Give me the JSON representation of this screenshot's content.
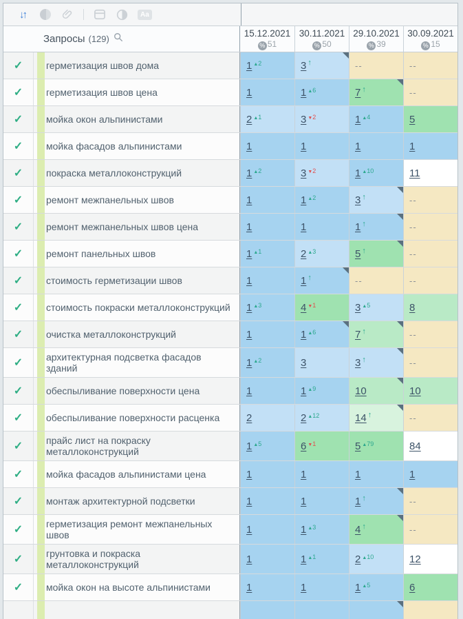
{
  "toolbar": {
    "sort_glyph": "↓↑",
    "aa_label": "Aa",
    "icons": [
      "sort-icon",
      "circle-half-icon",
      "link-icon",
      "card-icon",
      "contrast-icon",
      "font-case-icon"
    ]
  },
  "header": {
    "title": "Запросы",
    "count": "(129)"
  },
  "columns": [
    {
      "date": "15.12.2021",
      "percent": "51"
    },
    {
      "date": "30.11.2021",
      "percent": "50"
    },
    {
      "date": "29.10.2021",
      "percent": "39"
    },
    {
      "date": "30.09.2021",
      "percent": "15"
    }
  ],
  "glyphs": {
    "check": "✓",
    "up_triangle": "▲",
    "down_triangle": "▼",
    "up_arrow": "↑",
    "percent": "%",
    "none_value": "--"
  },
  "colors": {
    "b1": "#a6d3f0",
    "b2": "#c2e0f6",
    "g1": "#9fe2b0",
    "g2": "#b9eac6",
    "g3": "#d8f3de",
    "w": "#ffffff",
    "t": "#f5e8c2",
    "accent_blue": "#3b7ed7",
    "check_green": "#2fae84",
    "delta_up_teal": "#2ca88e",
    "delta_down_red": "#e04f4f",
    "group_stripe": "#dcedb0"
  },
  "rows": [
    {
      "keyword": "герметизация швов дома",
      "cells": [
        {
          "v": "1",
          "d": "2",
          "dir": "up",
          "c": "b1"
        },
        {
          "v": "3",
          "dir": "arrow",
          "c": "b2",
          "corner": true
        },
        {
          "v": "--",
          "c": "t"
        },
        {
          "v": "--",
          "c": "t"
        }
      ]
    },
    {
      "keyword": "герметизация швов цена",
      "cells": [
        {
          "v": "1",
          "c": "b1"
        },
        {
          "v": "1",
          "d": "6",
          "dir": "up",
          "c": "b1"
        },
        {
          "v": "7",
          "dir": "arrow",
          "c": "g1",
          "corner": true
        },
        {
          "v": "--",
          "c": "t"
        }
      ]
    },
    {
      "keyword": "мойка окон альпинистами",
      "cells": [
        {
          "v": "2",
          "d": "1",
          "dir": "up",
          "c": "b2"
        },
        {
          "v": "3",
          "d": "2",
          "dir": "down",
          "c": "b2"
        },
        {
          "v": "1",
          "d": "4",
          "dir": "up",
          "c": "b1"
        },
        {
          "v": "5",
          "c": "g1"
        }
      ]
    },
    {
      "keyword": "мойка фасадов альпинистами",
      "cells": [
        {
          "v": "1",
          "c": "b1"
        },
        {
          "v": "1",
          "c": "b1"
        },
        {
          "v": "1",
          "c": "b1"
        },
        {
          "v": "1",
          "c": "b1"
        }
      ]
    },
    {
      "keyword": "покраска металлоконструкций",
      "cells": [
        {
          "v": "1",
          "d": "2",
          "dir": "up",
          "c": "b1"
        },
        {
          "v": "3",
          "d": "2",
          "dir": "down",
          "c": "b2"
        },
        {
          "v": "1",
          "d": "10",
          "dir": "up",
          "c": "b1"
        },
        {
          "v": "11",
          "c": "w"
        }
      ]
    },
    {
      "keyword": "ремонт межпанельных швов",
      "cells": [
        {
          "v": "1",
          "c": "b1"
        },
        {
          "v": "1",
          "d": "2",
          "dir": "up",
          "c": "b1"
        },
        {
          "v": "3",
          "dir": "arrow",
          "c": "b2",
          "corner": true
        },
        {
          "v": "--",
          "c": "t"
        }
      ]
    },
    {
      "keyword": "ремонт межпанельных швов цена",
      "cells": [
        {
          "v": "1",
          "c": "b1"
        },
        {
          "v": "1",
          "c": "b1"
        },
        {
          "v": "1",
          "dir": "arrow",
          "c": "b1",
          "corner": true
        },
        {
          "v": "--",
          "c": "t"
        }
      ]
    },
    {
      "keyword": "ремонт панельных швов",
      "cells": [
        {
          "v": "1",
          "d": "1",
          "dir": "up",
          "c": "b1"
        },
        {
          "v": "2",
          "d": "3",
          "dir": "up",
          "c": "b2"
        },
        {
          "v": "5",
          "dir": "arrow",
          "c": "g1",
          "corner": true
        },
        {
          "v": "--",
          "c": "t"
        }
      ]
    },
    {
      "keyword": "стоимость герметизации швов",
      "cells": [
        {
          "v": "1",
          "c": "b1"
        },
        {
          "v": "1",
          "dir": "arrow",
          "c": "b1",
          "corner": true
        },
        {
          "v": "--",
          "c": "t"
        },
        {
          "v": "--",
          "c": "t"
        }
      ]
    },
    {
      "keyword": "стоимость покраски металлоконструкций",
      "cells": [
        {
          "v": "1",
          "d": "3",
          "dir": "up",
          "c": "b1"
        },
        {
          "v": "4",
          "d": "1",
          "dir": "down",
          "c": "g1"
        },
        {
          "v": "3",
          "d": "5",
          "dir": "up",
          "c": "b2"
        },
        {
          "v": "8",
          "c": "g2"
        }
      ]
    },
    {
      "keyword": "очистка металлоконструкций",
      "cells": [
        {
          "v": "1",
          "c": "b1"
        },
        {
          "v": "1",
          "d": "6",
          "dir": "up",
          "c": "b1",
          "corner": true
        },
        {
          "v": "7",
          "dir": "arrow",
          "c": "g2",
          "corner": true
        },
        {
          "v": "--",
          "c": "t"
        }
      ]
    },
    {
      "keyword": "архитектурная подсветка фасадов зданий",
      "cells": [
        {
          "v": "1",
          "d": "2",
          "dir": "up",
          "c": "b1"
        },
        {
          "v": "3",
          "c": "b2"
        },
        {
          "v": "3",
          "dir": "arrow",
          "c": "b2",
          "corner": true
        },
        {
          "v": "--",
          "c": "t"
        }
      ]
    },
    {
      "keyword": "обеспыливание поверхности цена",
      "cells": [
        {
          "v": "1",
          "c": "b1"
        },
        {
          "v": "1",
          "d": "9",
          "dir": "up",
          "c": "b1"
        },
        {
          "v": "10",
          "c": "g2",
          "corner": true
        },
        {
          "v": "10",
          "c": "g2"
        }
      ]
    },
    {
      "keyword": "обеспыливание поверхности расценка",
      "cells": [
        {
          "v": "2",
          "c": "b2"
        },
        {
          "v": "2",
          "d": "12",
          "dir": "up",
          "c": "b2"
        },
        {
          "v": "14",
          "dir": "arrow",
          "c": "g3",
          "corner": true
        },
        {
          "v": "--",
          "c": "t"
        }
      ]
    },
    {
      "keyword": "прайс лист на покраску металлоконструкций",
      "cells": [
        {
          "v": "1",
          "d": "5",
          "dir": "up",
          "c": "b1"
        },
        {
          "v": "6",
          "d": "1",
          "dir": "down",
          "c": "g1"
        },
        {
          "v": "5",
          "d": "79",
          "dir": "up",
          "c": "g1"
        },
        {
          "v": "84",
          "c": "w"
        }
      ]
    },
    {
      "keyword": "мойка фасадов альпинистами цена",
      "cells": [
        {
          "v": "1",
          "c": "b1"
        },
        {
          "v": "1",
          "c": "b1"
        },
        {
          "v": "1",
          "c": "b1"
        },
        {
          "v": "1",
          "c": "b1"
        }
      ]
    },
    {
      "keyword": "монтаж архитектурной подсветки",
      "cells": [
        {
          "v": "1",
          "c": "b1"
        },
        {
          "v": "1",
          "c": "b1"
        },
        {
          "v": "1",
          "dir": "arrow",
          "c": "b1",
          "corner": true
        },
        {
          "v": "--",
          "c": "t"
        }
      ]
    },
    {
      "keyword": "герметизация ремонт межпанельных швов",
      "cells": [
        {
          "v": "1",
          "c": "b1"
        },
        {
          "v": "1",
          "d": "3",
          "dir": "up",
          "c": "b1"
        },
        {
          "v": "4",
          "dir": "arrow",
          "c": "g1",
          "corner": true
        },
        {
          "v": "--",
          "c": "t"
        }
      ]
    },
    {
      "keyword": "грунтовка и покраска металлоконструкций",
      "cells": [
        {
          "v": "1",
          "c": "b1"
        },
        {
          "v": "1",
          "d": "1",
          "dir": "up",
          "c": "b1"
        },
        {
          "v": "2",
          "d": "10",
          "dir": "up",
          "c": "b2"
        },
        {
          "v": "12",
          "c": "w"
        }
      ]
    },
    {
      "keyword": "мойка окон на высоте альпинистами",
      "cells": [
        {
          "v": "1",
          "c": "b1"
        },
        {
          "v": "1",
          "c": "b1"
        },
        {
          "v": "1",
          "d": "5",
          "dir": "up",
          "c": "b1"
        },
        {
          "v": "6",
          "c": "g1"
        }
      ]
    }
  ],
  "partial_row": {
    "cells": [
      {
        "c": "b1"
      },
      {
        "c": "b1"
      },
      {
        "c": "b1",
        "corner": true
      },
      {
        "c": "t"
      }
    ]
  }
}
